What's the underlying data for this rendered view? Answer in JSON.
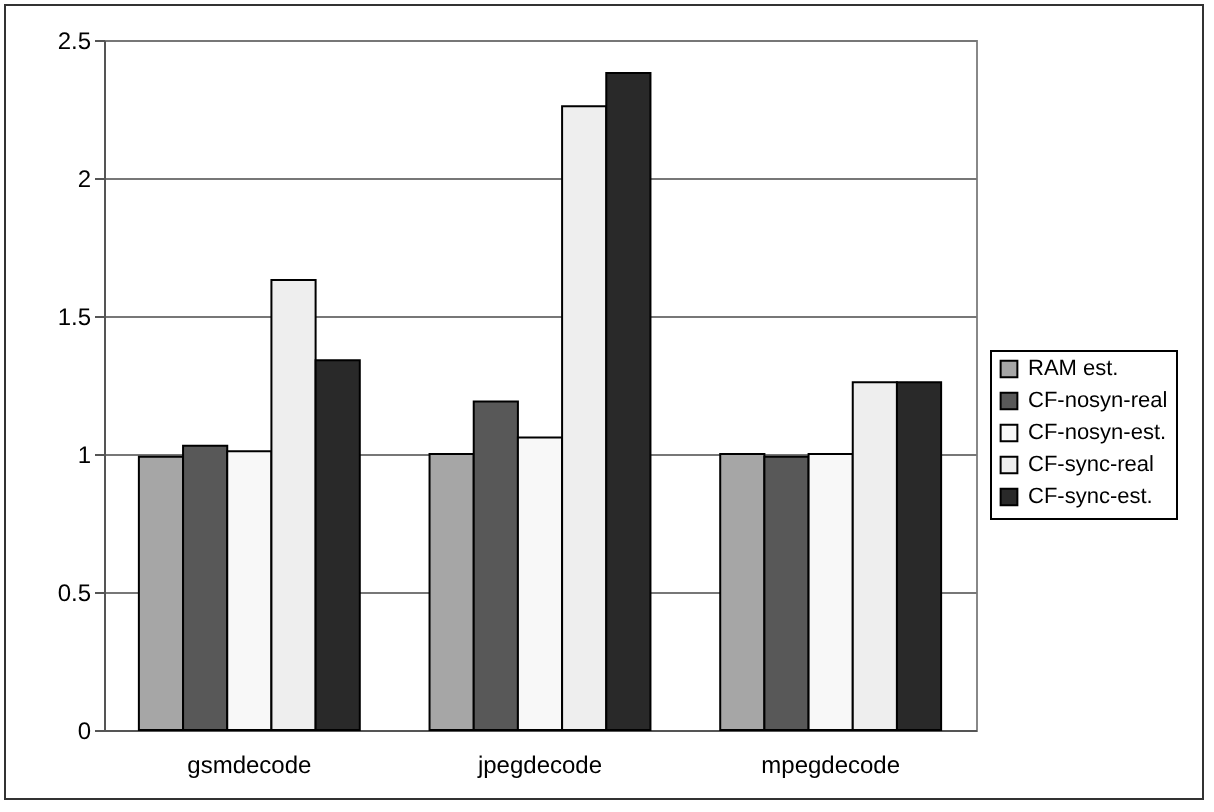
{
  "chart_data": {
    "type": "bar",
    "categories": [
      "gsmdecode",
      "jpegdecode",
      "mpegdecode"
    ],
    "series": [
      {
        "name": "RAM est.",
        "color": "#a6a6a6",
        "values": [
          0.99,
          1.0,
          1.0
        ]
      },
      {
        "name": "CF-nosyn-real",
        "color": "#585858",
        "values": [
          1.03,
          1.19,
          0.99
        ]
      },
      {
        "name": "CF-nosyn-est.",
        "color": "#f8f8f8",
        "values": [
          1.01,
          1.06,
          1.0
        ]
      },
      {
        "name": "CF-sync-real",
        "color": "#eeeeee",
        "values": [
          1.63,
          2.26,
          1.26
        ]
      },
      {
        "name": "CF-sync-est.",
        "color": "#292929",
        "values": [
          1.34,
          2.38,
          1.26
        ]
      }
    ],
    "ylim": [
      0,
      2.5
    ],
    "yticks": [
      0,
      0.5,
      1,
      1.5,
      2,
      2.5
    ],
    "grid": "y",
    "legend": "right"
  }
}
